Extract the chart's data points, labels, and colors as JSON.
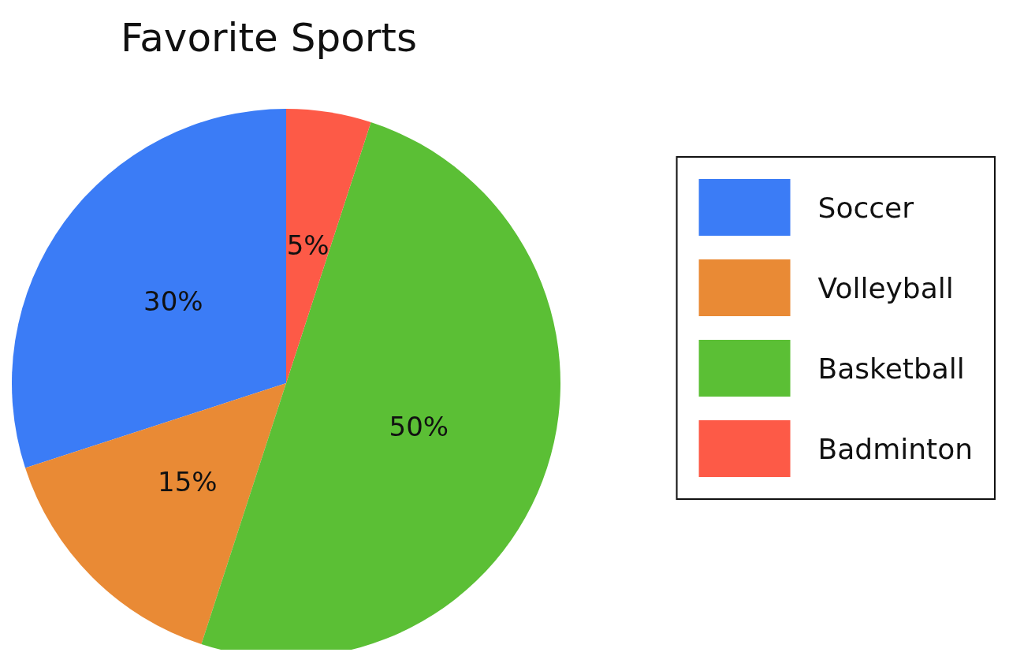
{
  "chart_data": {
    "type": "pie",
    "title": "Favorite Sports",
    "categories": [
      "Soccer",
      "Volleyball",
      "Basketball",
      "Badminton"
    ],
    "values": [
      30,
      15,
      50,
      5
    ],
    "colors": [
      "#3b7cf6",
      "#e98a35",
      "#5bbf35",
      "#fd5a47"
    ],
    "value_labels": [
      "30%",
      "15%",
      "50%",
      "5%"
    ],
    "legend": "right"
  }
}
